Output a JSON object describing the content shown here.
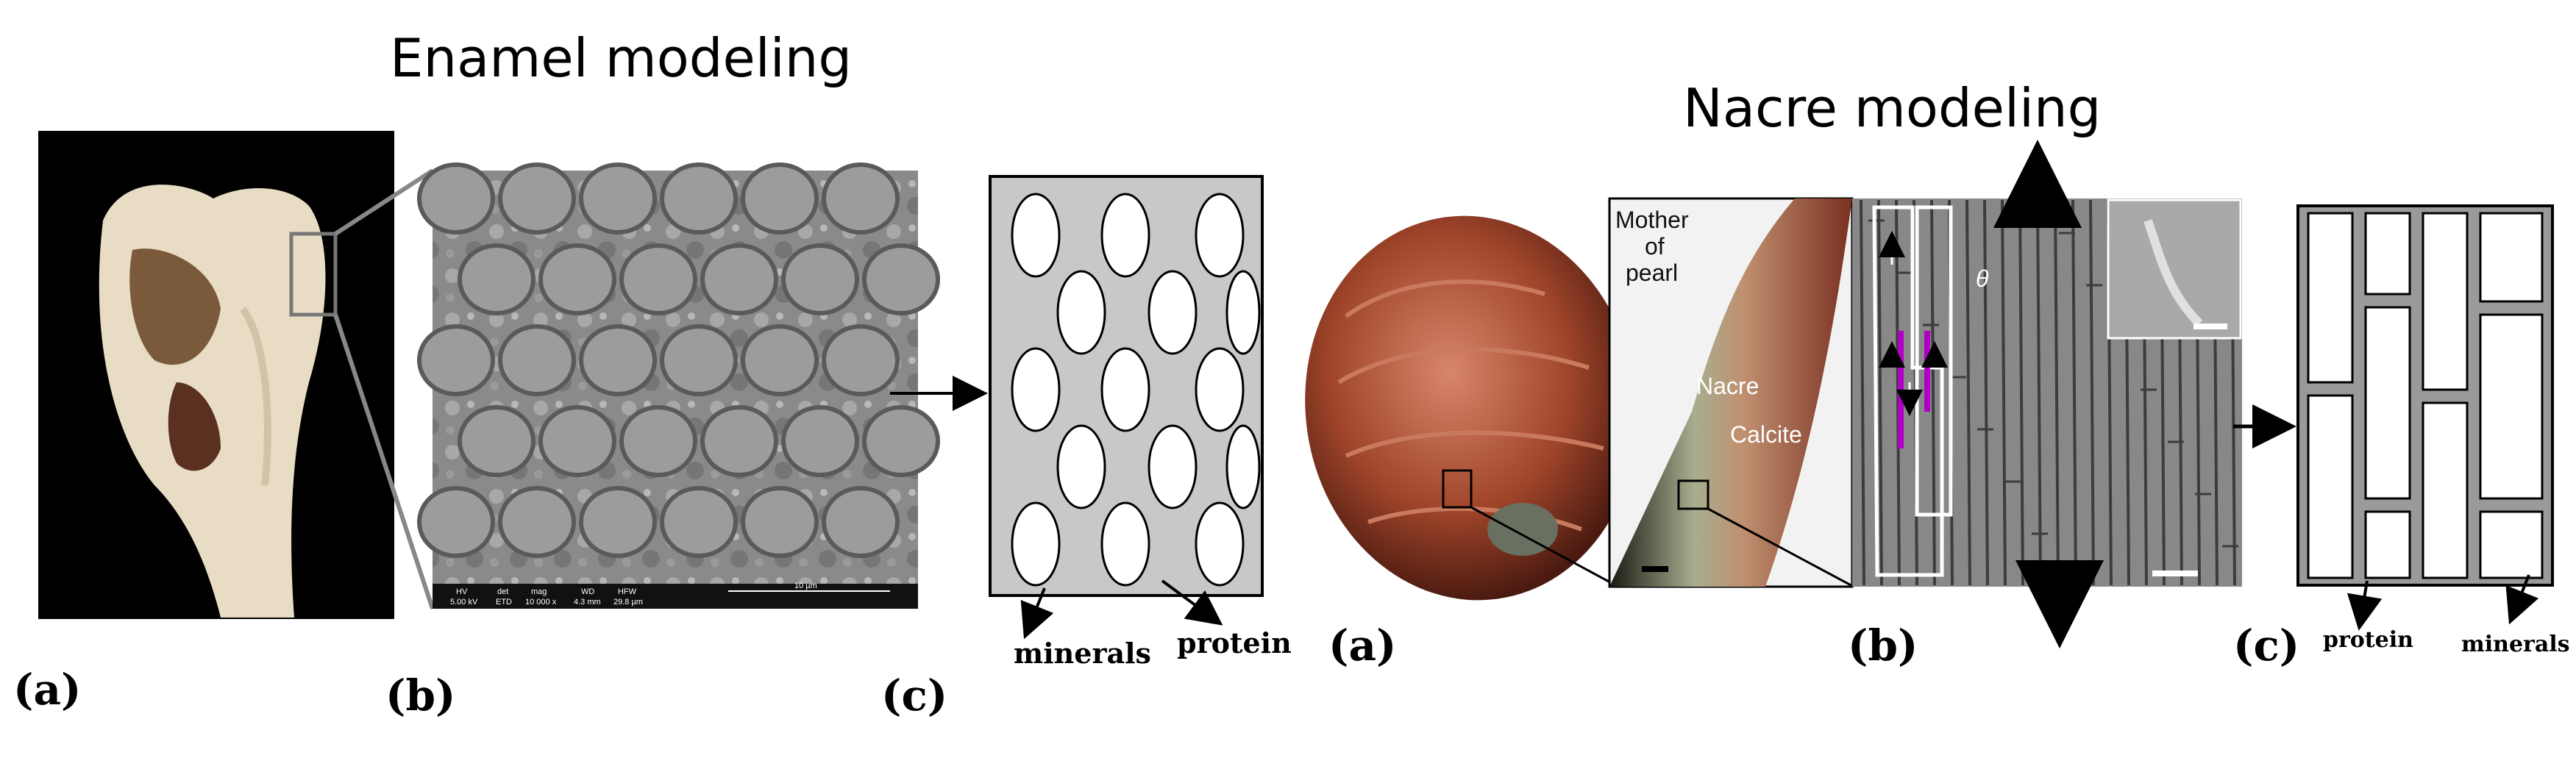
{
  "enamel": {
    "title": "Enamel modeling",
    "labels": {
      "a": "(a)",
      "b": "(b)",
      "c": "(c)"
    },
    "sem_bar": {
      "hv": "HV",
      "hv_val": "5.00 kV",
      "det": "det",
      "det_val": "ETD",
      "mag": "mag",
      "mag_val": "10 000 x",
      "wd": "WD",
      "wd_val": "4.3 mm",
      "hfw": "HFW",
      "hfw_val": "29.8 µm",
      "scale": "10 µm"
    },
    "model": {
      "minerals_label": "minerals",
      "protein_label": "protein"
    }
  },
  "nacre": {
    "title": "Nacre modeling",
    "labels": {
      "a": "(a)",
      "b": "(b)",
      "c": "(c)"
    },
    "shell_section": {
      "mother_of_pearl_1": "Mother",
      "mother_of_pearl_2": "of",
      "mother_of_pearl_3": "pearl",
      "nacre": "Nacre",
      "calcite": "Calcite"
    },
    "micrograph": {
      "angle": "θ"
    },
    "model": {
      "protein_label": "protein",
      "minerals_label": "minerals"
    }
  },
  "colors": {
    "protein_matrix": "#c8c8c8",
    "mineral": "#ffffff",
    "shell": "#a0452a",
    "highlight": "#b000c8"
  }
}
